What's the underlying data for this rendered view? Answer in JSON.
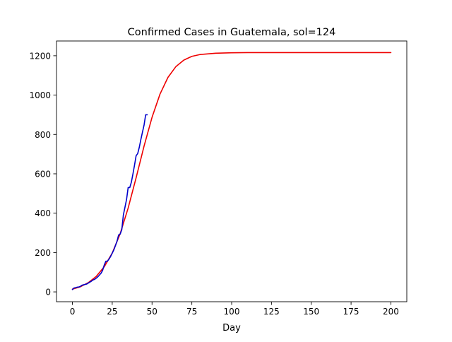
{
  "chart_data": {
    "type": "line",
    "title": "Confirmed Cases in Guatemala, sol=124",
    "xlabel": "Day",
    "ylabel": "",
    "xlim": [
      -10,
      210
    ],
    "ylim": [
      -50,
      1275
    ],
    "x_ticks": [
      0,
      25,
      50,
      75,
      100,
      125,
      150,
      175,
      200
    ],
    "y_ticks": [
      0,
      200,
      400,
      600,
      800,
      1000,
      1200
    ],
    "grid": false,
    "legend": "none",
    "series": [
      {
        "color": "#ee0000",
        "style": "solid",
        "x": [
          0,
          5,
          10,
          15,
          20,
          25,
          30,
          35,
          40,
          45,
          50,
          55,
          60,
          65,
          70,
          75,
          80,
          90,
          100,
          110,
          125,
          150,
          175,
          200
        ],
        "values": [
          14,
          26,
          47,
          79,
          128,
          197,
          296,
          426,
          580,
          741,
          887,
          1005,
          1090,
          1145,
          1178,
          1197,
          1206,
          1213,
          1215,
          1216,
          1216,
          1216,
          1216,
          1216
        ]
      },
      {
        "color": "#0000cc",
        "style": "solid",
        "x": [
          0,
          1,
          2,
          3,
          4,
          5,
          6,
          7,
          8,
          9,
          10,
          11,
          12,
          13,
          14,
          15,
          16,
          17,
          18,
          19,
          20,
          21,
          22,
          23,
          24,
          25,
          26,
          27,
          28,
          29,
          30,
          31,
          32,
          33,
          34,
          35,
          36,
          37,
          38,
          39,
          40,
          41,
          42,
          43,
          44,
          45,
          46,
          47
        ],
        "values": [
          12,
          20,
          21,
          24,
          25,
          28,
          34,
          36,
          38,
          40,
          45,
          50,
          55,
          61,
          64,
          70,
          77,
          86,
          95,
          110,
          137,
          156,
          156,
          167,
          180,
          197,
          213,
          235,
          257,
          289,
          294,
          316,
          391,
          430,
          470,
          530,
          530,
          557,
          599,
          644,
          692,
          703,
          735,
          775,
          812,
          848,
          900,
          900
        ]
      }
    ]
  }
}
